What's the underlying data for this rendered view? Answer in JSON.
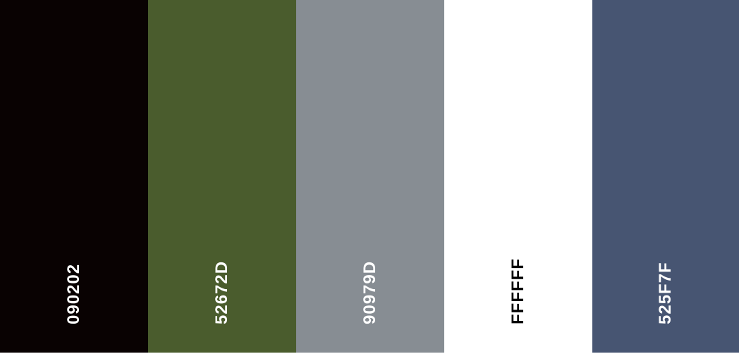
{
  "palette": {
    "swatches": [
      {
        "hex": "090202",
        "color": "#090202",
        "text_color": "#ffffff"
      },
      {
        "hex": "52672D",
        "color": "#4A5C2D",
        "text_color": "#ffffff"
      },
      {
        "hex": "90979D",
        "color": "#878D93",
        "text_color": "#ffffff"
      },
      {
        "hex": "FFFFFF",
        "color": "#FFFFFF",
        "text_color": "#000000"
      },
      {
        "hex": "525F7F",
        "color": "#475572",
        "text_color": "#ffffff"
      }
    ]
  }
}
